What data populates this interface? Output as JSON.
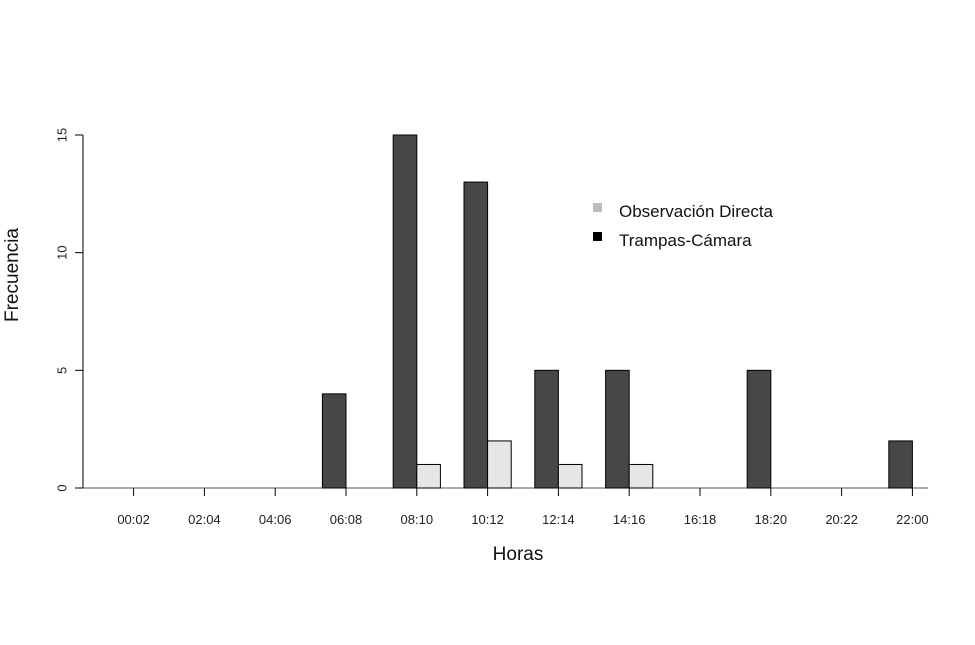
{
  "chart_data": {
    "type": "bar",
    "xlabel": "Horas",
    "ylabel": "Frecuencia",
    "categories": [
      "00:02",
      "02:04",
      "04:06",
      "06:08",
      "08:10",
      "10:12",
      "12:14",
      "14:16",
      "16:18",
      "18:20",
      "20:22",
      "22:00"
    ],
    "series": [
      {
        "name": "Trampas-Cámara",
        "color": "#474747",
        "values": [
          0,
          0,
          0,
          4,
          15,
          13,
          5,
          5,
          0,
          5,
          0,
          2
        ]
      },
      {
        "name": "Observación Directa",
        "color": "#e6e6e6",
        "values": [
          0,
          0,
          0,
          0,
          1,
          2,
          1,
          1,
          0,
          0,
          0,
          0
        ]
      }
    ],
    "ylim": [
      0,
      15
    ],
    "yticks": [
      0,
      5,
      10,
      15
    ],
    "grid": false,
    "legend": {
      "position": "top-right",
      "entries": [
        {
          "label": "Observación Directa",
          "swatch_color": "#bdbdbd"
        },
        {
          "label": "Trampas-Cámara",
          "swatch_color": "#000000"
        }
      ]
    }
  }
}
